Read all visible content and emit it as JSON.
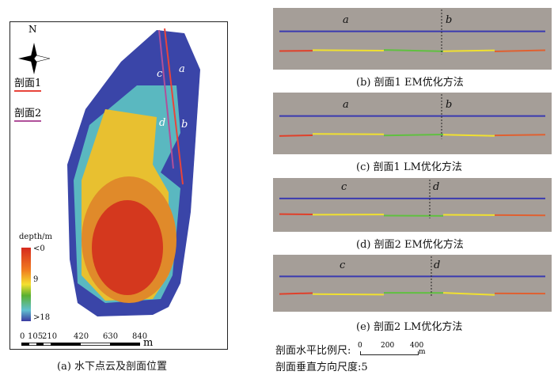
{
  "map": {
    "north_label": "N",
    "profile1_label": "剖面1",
    "profile2_label": "剖面2",
    "profile1_color": "#e8443a",
    "profile2_color": "#b0509a",
    "point_labels": [
      "a",
      "b",
      "c",
      "d"
    ],
    "legend": {
      "title": "depth/m",
      "top": "<0",
      "mid": "9",
      "bottom": ">18"
    },
    "scale": {
      "ticks": [
        "0",
        "105",
        "210",
        "420",
        "630",
        "840"
      ],
      "unit": "m"
    },
    "caption": "(a) 水下点云及剖面位置"
  },
  "profiles": [
    {
      "id": "b",
      "caption": "(b) 剖面1 EM优化方法",
      "left_label": "a",
      "right_label": "b"
    },
    {
      "id": "c",
      "caption": "(c) 剖面1 LM优化方法",
      "left_label": "a",
      "right_label": "b"
    },
    {
      "id": "d",
      "caption": "(d) 剖面2 EM优化方法",
      "left_label": "c",
      "right_label": "d"
    },
    {
      "id": "e",
      "caption": "(e) 剖面2 LM优化方法",
      "left_label": "c",
      "right_label": "d"
    }
  ],
  "footer": {
    "h_scale_label": "剖面水平比例尺:",
    "h_scale_ticks": [
      "0",
      "200",
      "400"
    ],
    "h_scale_unit": "m",
    "v_scale_label": "剖面垂直方向尺度:5"
  }
}
